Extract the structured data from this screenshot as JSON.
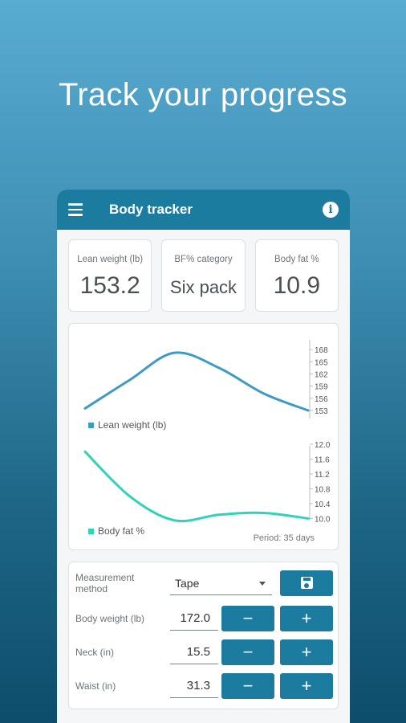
{
  "headline": "Track your progress",
  "appbar": {
    "title": "Body tracker",
    "menu_icon": "menu-icon",
    "info_icon": "info-icon"
  },
  "cards": [
    {
      "label": "Lean weight (lb)",
      "value": "153.2"
    },
    {
      "label": "BF% category",
      "value": "Six pack"
    },
    {
      "label": "Body fat %",
      "value": "10.9"
    }
  ],
  "chart_data": [
    {
      "type": "line",
      "series": [
        {
          "name": "Lean weight (lb)",
          "values": [
            153.5,
            160.5,
            167.2,
            163.5,
            157.2,
            153.0
          ]
        }
      ],
      "x": [
        0,
        7,
        14,
        21,
        28,
        35
      ],
      "ylim": [
        152,
        170
      ],
      "yticks": [
        "168",
        "165",
        "162",
        "159",
        "156",
        "153"
      ],
      "ytick_values": [
        168,
        165,
        162,
        159,
        156,
        153
      ],
      "color": "#3e9bc6"
    },
    {
      "type": "line",
      "series": [
        {
          "name": "Body fat %",
          "values": [
            11.8,
            10.6,
            9.95,
            10.1,
            10.15,
            10.0
          ]
        }
      ],
      "x": [
        0,
        7,
        14,
        21,
        28,
        35
      ],
      "ylim": [
        9.9,
        12.0
      ],
      "yticks": [
        "12.0",
        "11.6",
        "11.2",
        "10.8",
        "10.4",
        "10.0"
      ],
      "ytick_values": [
        12.0,
        11.6,
        11.2,
        10.8,
        10.4,
        10.0
      ],
      "color": "#2ed3b8"
    }
  ],
  "period_label": "Period: 35 days",
  "form": {
    "method_label": "Measurement method",
    "method_value": "Tape",
    "rows": [
      {
        "label": "Body weight (lb)",
        "value": "172.0"
      },
      {
        "label": "Neck (in)",
        "value": "15.5"
      },
      {
        "label": "Waist (in)",
        "value": "31.3"
      }
    ],
    "minus_label": "−",
    "plus_label": "+"
  }
}
